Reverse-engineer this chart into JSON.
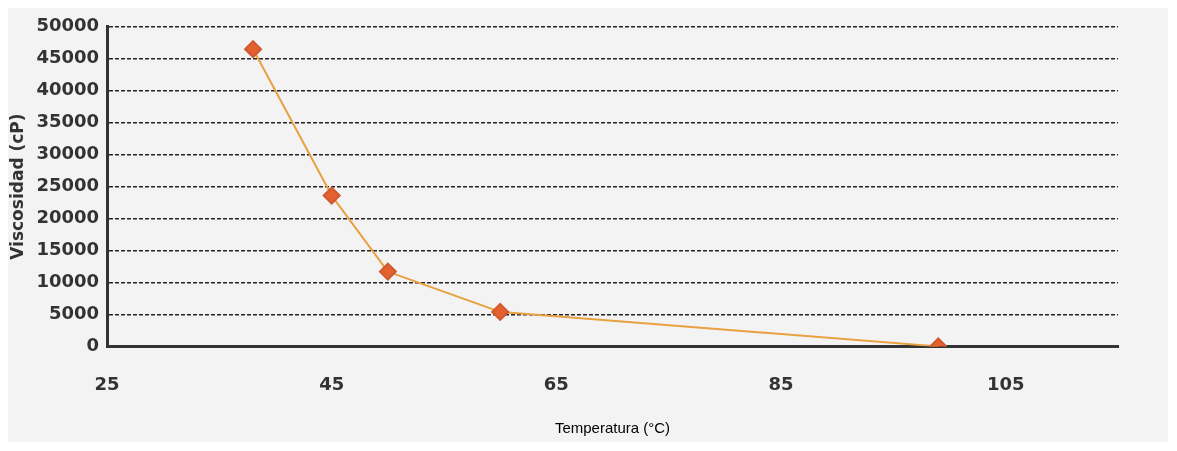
{
  "chart_data": {
    "type": "line",
    "xlabel": "Temperatura (°C)",
    "ylabel": "Viscosidad (cP)",
    "x": [
      38,
      45,
      50,
      60,
      99
    ],
    "series": [
      {
        "color": "#e8a040",
        "values": [
          46500,
          23600,
          11700,
          5400,
          0
        ]
      }
    ],
    "xlim": [
      25,
      115
    ],
    "xticks": [
      25,
      45,
      65,
      85,
      105
    ],
    "ylim": [
      0,
      50000
    ],
    "yticks": [
      0,
      5000,
      10000,
      15000,
      20000,
      25000,
      30000,
      35000,
      40000,
      45000,
      50000
    ],
    "grid": "y",
    "legend": false,
    "marker": "diamond",
    "line_style": "solid"
  }
}
